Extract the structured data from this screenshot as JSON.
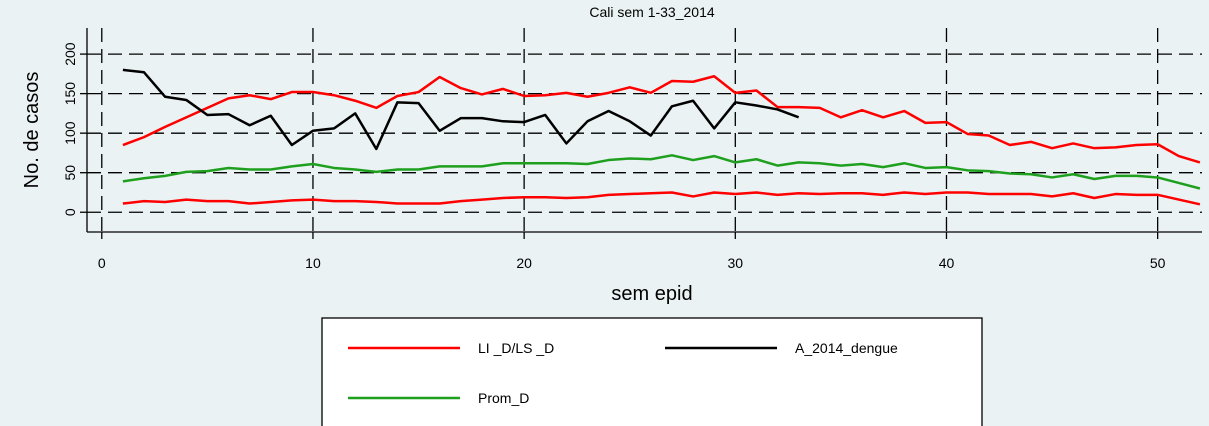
{
  "chart_data": {
    "type": "line",
    "title": "Cali sem 1-33_2014",
    "xlabel": "sem epid",
    "ylabel": "No. de casos",
    "x": [
      1,
      2,
      3,
      4,
      5,
      6,
      7,
      8,
      9,
      10,
      11,
      12,
      13,
      14,
      15,
      16,
      17,
      18,
      19,
      20,
      21,
      22,
      23,
      24,
      25,
      26,
      27,
      28,
      29,
      30,
      31,
      32,
      33,
      34,
      35,
      36,
      37,
      38,
      39,
      40,
      41,
      42,
      43,
      44,
      45,
      46,
      47,
      48,
      49,
      50,
      51,
      52
    ],
    "series": [
      {
        "name": "LI _D/LS _D",
        "color": "#ff0000",
        "lower": [
          11,
          14,
          13,
          16,
          14,
          14,
          11,
          13,
          15,
          16,
          14,
          14,
          13,
          11,
          11,
          11,
          14,
          16,
          18,
          19,
          19,
          18,
          19,
          22,
          23,
          24,
          25,
          20,
          25,
          23,
          25,
          22,
          24,
          23,
          24,
          24,
          22,
          25,
          23,
          25,
          25,
          23,
          23,
          23,
          20,
          24,
          18,
          23,
          22,
          22,
          16,
          10
        ],
        "upper": [
          85,
          95,
          108,
          120,
          132,
          144,
          148,
          143,
          152,
          152,
          148,
          141,
          132,
          147,
          152,
          171,
          157,
          149,
          156,
          147,
          148,
          151,
          146,
          151,
          158,
          151,
          166,
          165,
          172,
          151,
          154,
          133,
          133,
          132,
          120,
          129,
          120,
          128,
          113,
          114,
          99,
          97,
          85,
          89,
          81,
          87,
          81,
          82,
          85,
          86,
          71,
          63
        ]
      },
      {
        "name": "A_2014_dengue",
        "color": "#000000",
        "values": [
          180,
          177,
          146,
          142,
          123,
          124,
          110,
          122,
          85,
          103,
          106,
          125,
          80,
          139,
          138,
          103,
          119,
          119,
          115,
          114,
          123,
          87,
          115,
          128,
          115,
          97,
          134,
          141,
          106,
          139,
          135,
          130,
          120,
          null,
          null,
          null,
          null,
          null,
          null,
          null,
          null,
          null,
          null,
          null,
          null,
          null,
          null,
          null,
          null,
          null,
          null,
          null
        ]
      },
      {
        "name": "Prom_D",
        "color": "#1ea01e",
        "values": [
          39,
          43,
          46,
          51,
          52,
          56,
          54,
          54,
          58,
          61,
          56,
          54,
          51,
          54,
          54,
          58,
          58,
          58,
          62,
          62,
          62,
          62,
          61,
          66,
          68,
          67,
          72,
          66,
          71,
          63,
          67,
          59,
          63,
          62,
          59,
          61,
          57,
          62,
          56,
          57,
          53,
          52,
          49,
          48,
          44,
          48,
          42,
          46,
          46,
          44,
          37,
          30
        ]
      }
    ],
    "xlim": [
      -0.7,
      52.1
    ],
    "xticks": [
      0,
      10,
      20,
      30,
      40,
      50
    ],
    "ylim": [
      -25,
      233
    ],
    "yticks": [
      0,
      50,
      100,
      150,
      200
    ],
    "grid": true
  }
}
